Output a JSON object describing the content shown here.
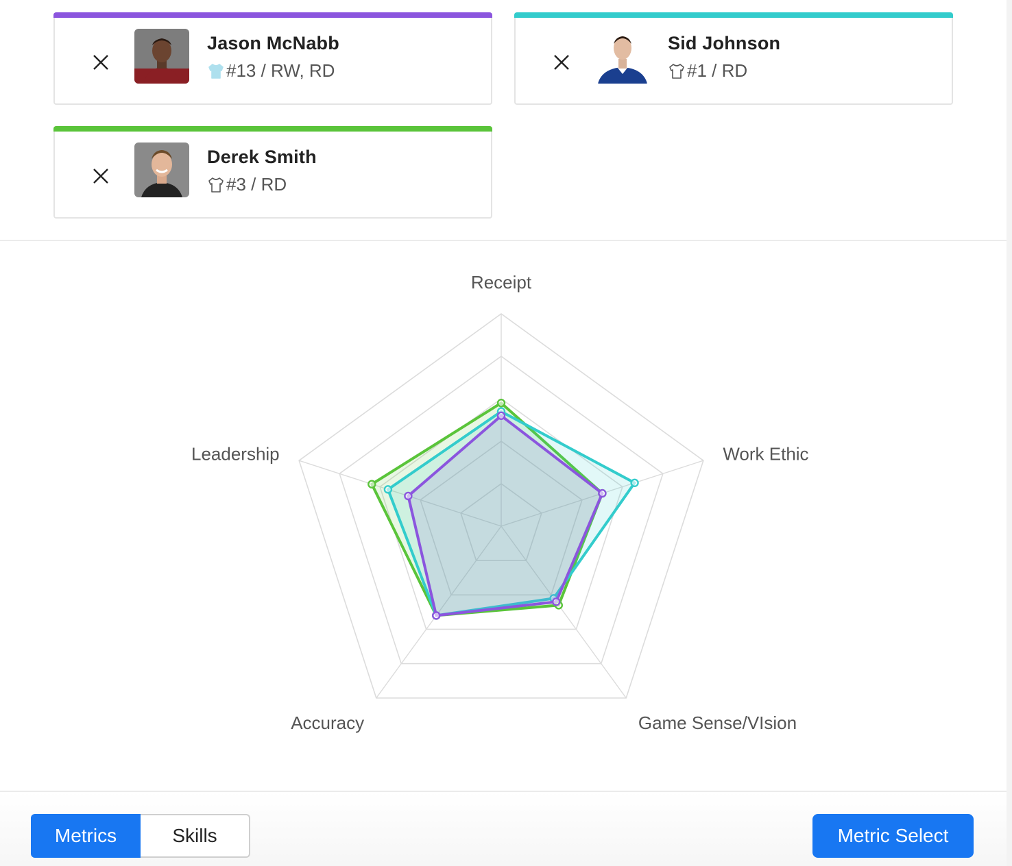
{
  "players": [
    {
      "name": "Jason McNabb",
      "meta": "#13 / RW, RD",
      "accent": "#8b55de",
      "jersey_style": "filled",
      "avatar_style": "maroon"
    },
    {
      "name": "Sid Johnson",
      "meta": "#1 / RD",
      "accent": "#33cccc",
      "jersey_style": "outline",
      "avatar_style": "blue"
    },
    {
      "name": "Derek Smith",
      "meta": "#3 / RD",
      "accent": "#5ac43a",
      "jersey_style": "outline",
      "avatar_style": "grey"
    }
  ],
  "chart_data": {
    "type": "radar",
    "axes": [
      "Receipt",
      "Work Ethic",
      "Game Sense/VIsion",
      "Accuracy",
      "Leadership"
    ],
    "rmax": 5,
    "grid_levels": 5,
    "series": [
      {
        "name": "Derek Smith",
        "color": "#5ac43a",
        "values": [
          2.9,
          2.5,
          2.3,
          2.6,
          3.2
        ]
      },
      {
        "name": "Sid Johnson",
        "color": "#33cccc",
        "values": [
          2.7,
          3.3,
          2.1,
          2.6,
          2.8
        ]
      },
      {
        "name": "Jason McNabb",
        "color": "#8b55de",
        "values": [
          2.6,
          2.5,
          2.2,
          2.6,
          2.3
        ]
      }
    ]
  },
  "tabs": {
    "metrics": "Metrics",
    "skills": "Skills"
  },
  "actions": {
    "metric_select": "Metric Select"
  }
}
